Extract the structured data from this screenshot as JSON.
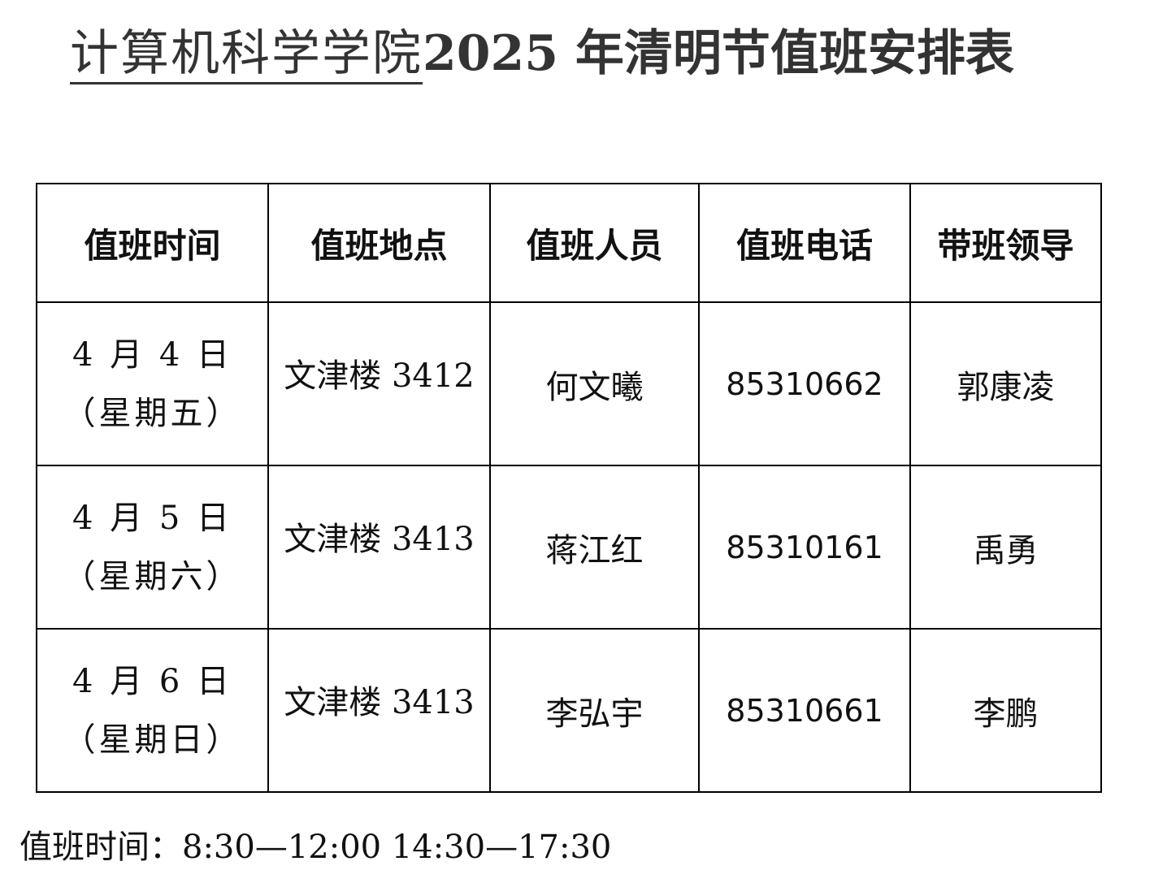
{
  "title": {
    "underlined": "计算机科学学院",
    "main": "2025 年清明节值班安排表"
  },
  "table": {
    "headers": [
      "值班时间",
      "值班地点",
      "值班人员",
      "值班电话",
      "带班领导"
    ],
    "rows": [
      {
        "date": "4 月 4 日",
        "weekday": "（星期五）",
        "location": "文津楼 3412",
        "staff": "何文曦",
        "phone": "85310662",
        "leader": "郭康凌"
      },
      {
        "date": "4 月 5 日",
        "weekday": "（星期六）",
        "location": "文津楼 3413",
        "staff": "蒋江红",
        "phone": "85310161",
        "leader": "禹勇"
      },
      {
        "date": "4 月 6 日",
        "weekday": "（星期日）",
        "location": "文津楼 3413",
        "staff": "李弘宇",
        "phone": "85310661",
        "leader": "李鹏"
      }
    ]
  },
  "footer": "值班时间：8:30—12:00   14:30—17:30"
}
